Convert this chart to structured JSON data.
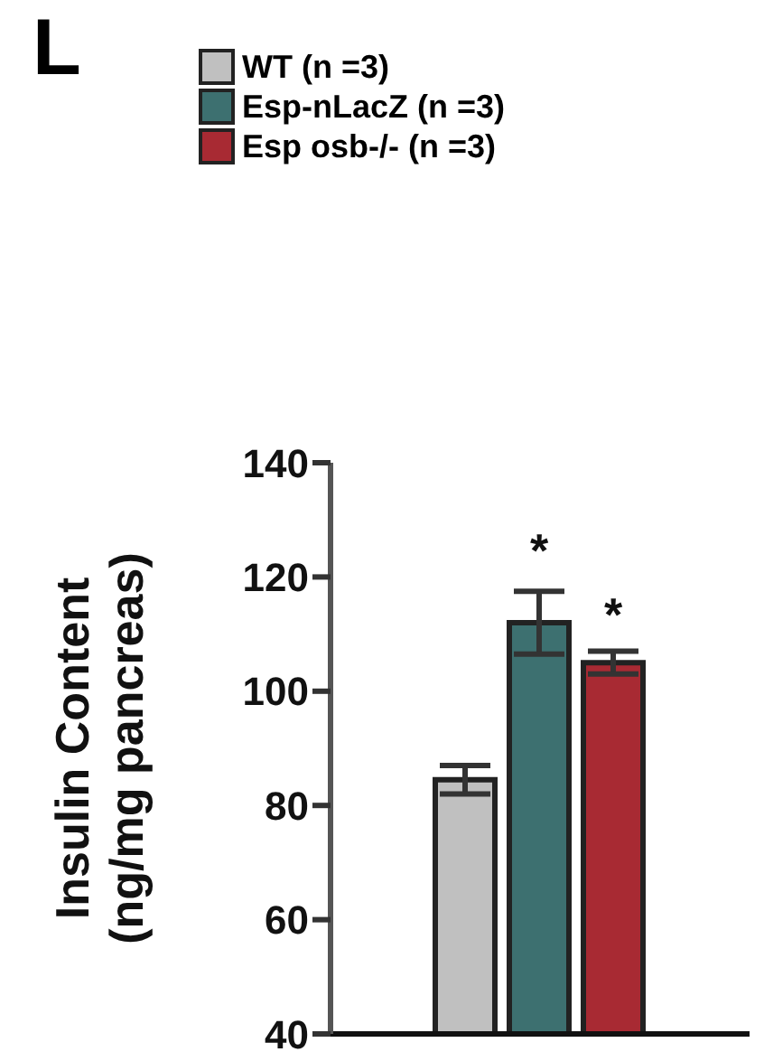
{
  "chart_data": {
    "type": "bar",
    "title": "L",
    "ylabel": "Insulin Content\n(ng/mg pancreas)",
    "categories": [
      null
    ],
    "series": [
      {
        "name": "WT  (n =3)",
        "color": "#c0c0c0",
        "values": [
          84.5
        ],
        "errors": [
          2.5
        ],
        "value_labels": [
          null
        ]
      },
      {
        "name": "Esp-nLacZ  (n =3)",
        "color": "#3d7070",
        "values": [
          112
        ],
        "errors": [
          5.5
        ],
        "value_labels": [
          "*"
        ]
      },
      {
        "name": "Esp osb-/-  (n =3)",
        "color": "#a82a33",
        "values": [
          105
        ],
        "errors": [
          2
        ],
        "value_labels": [
          "*"
        ]
      }
    ],
    "ylim": [
      40,
      140
    ],
    "yticks": [
      40,
      60,
      80,
      100,
      120,
      140
    ],
    "legend": "top left"
  }
}
